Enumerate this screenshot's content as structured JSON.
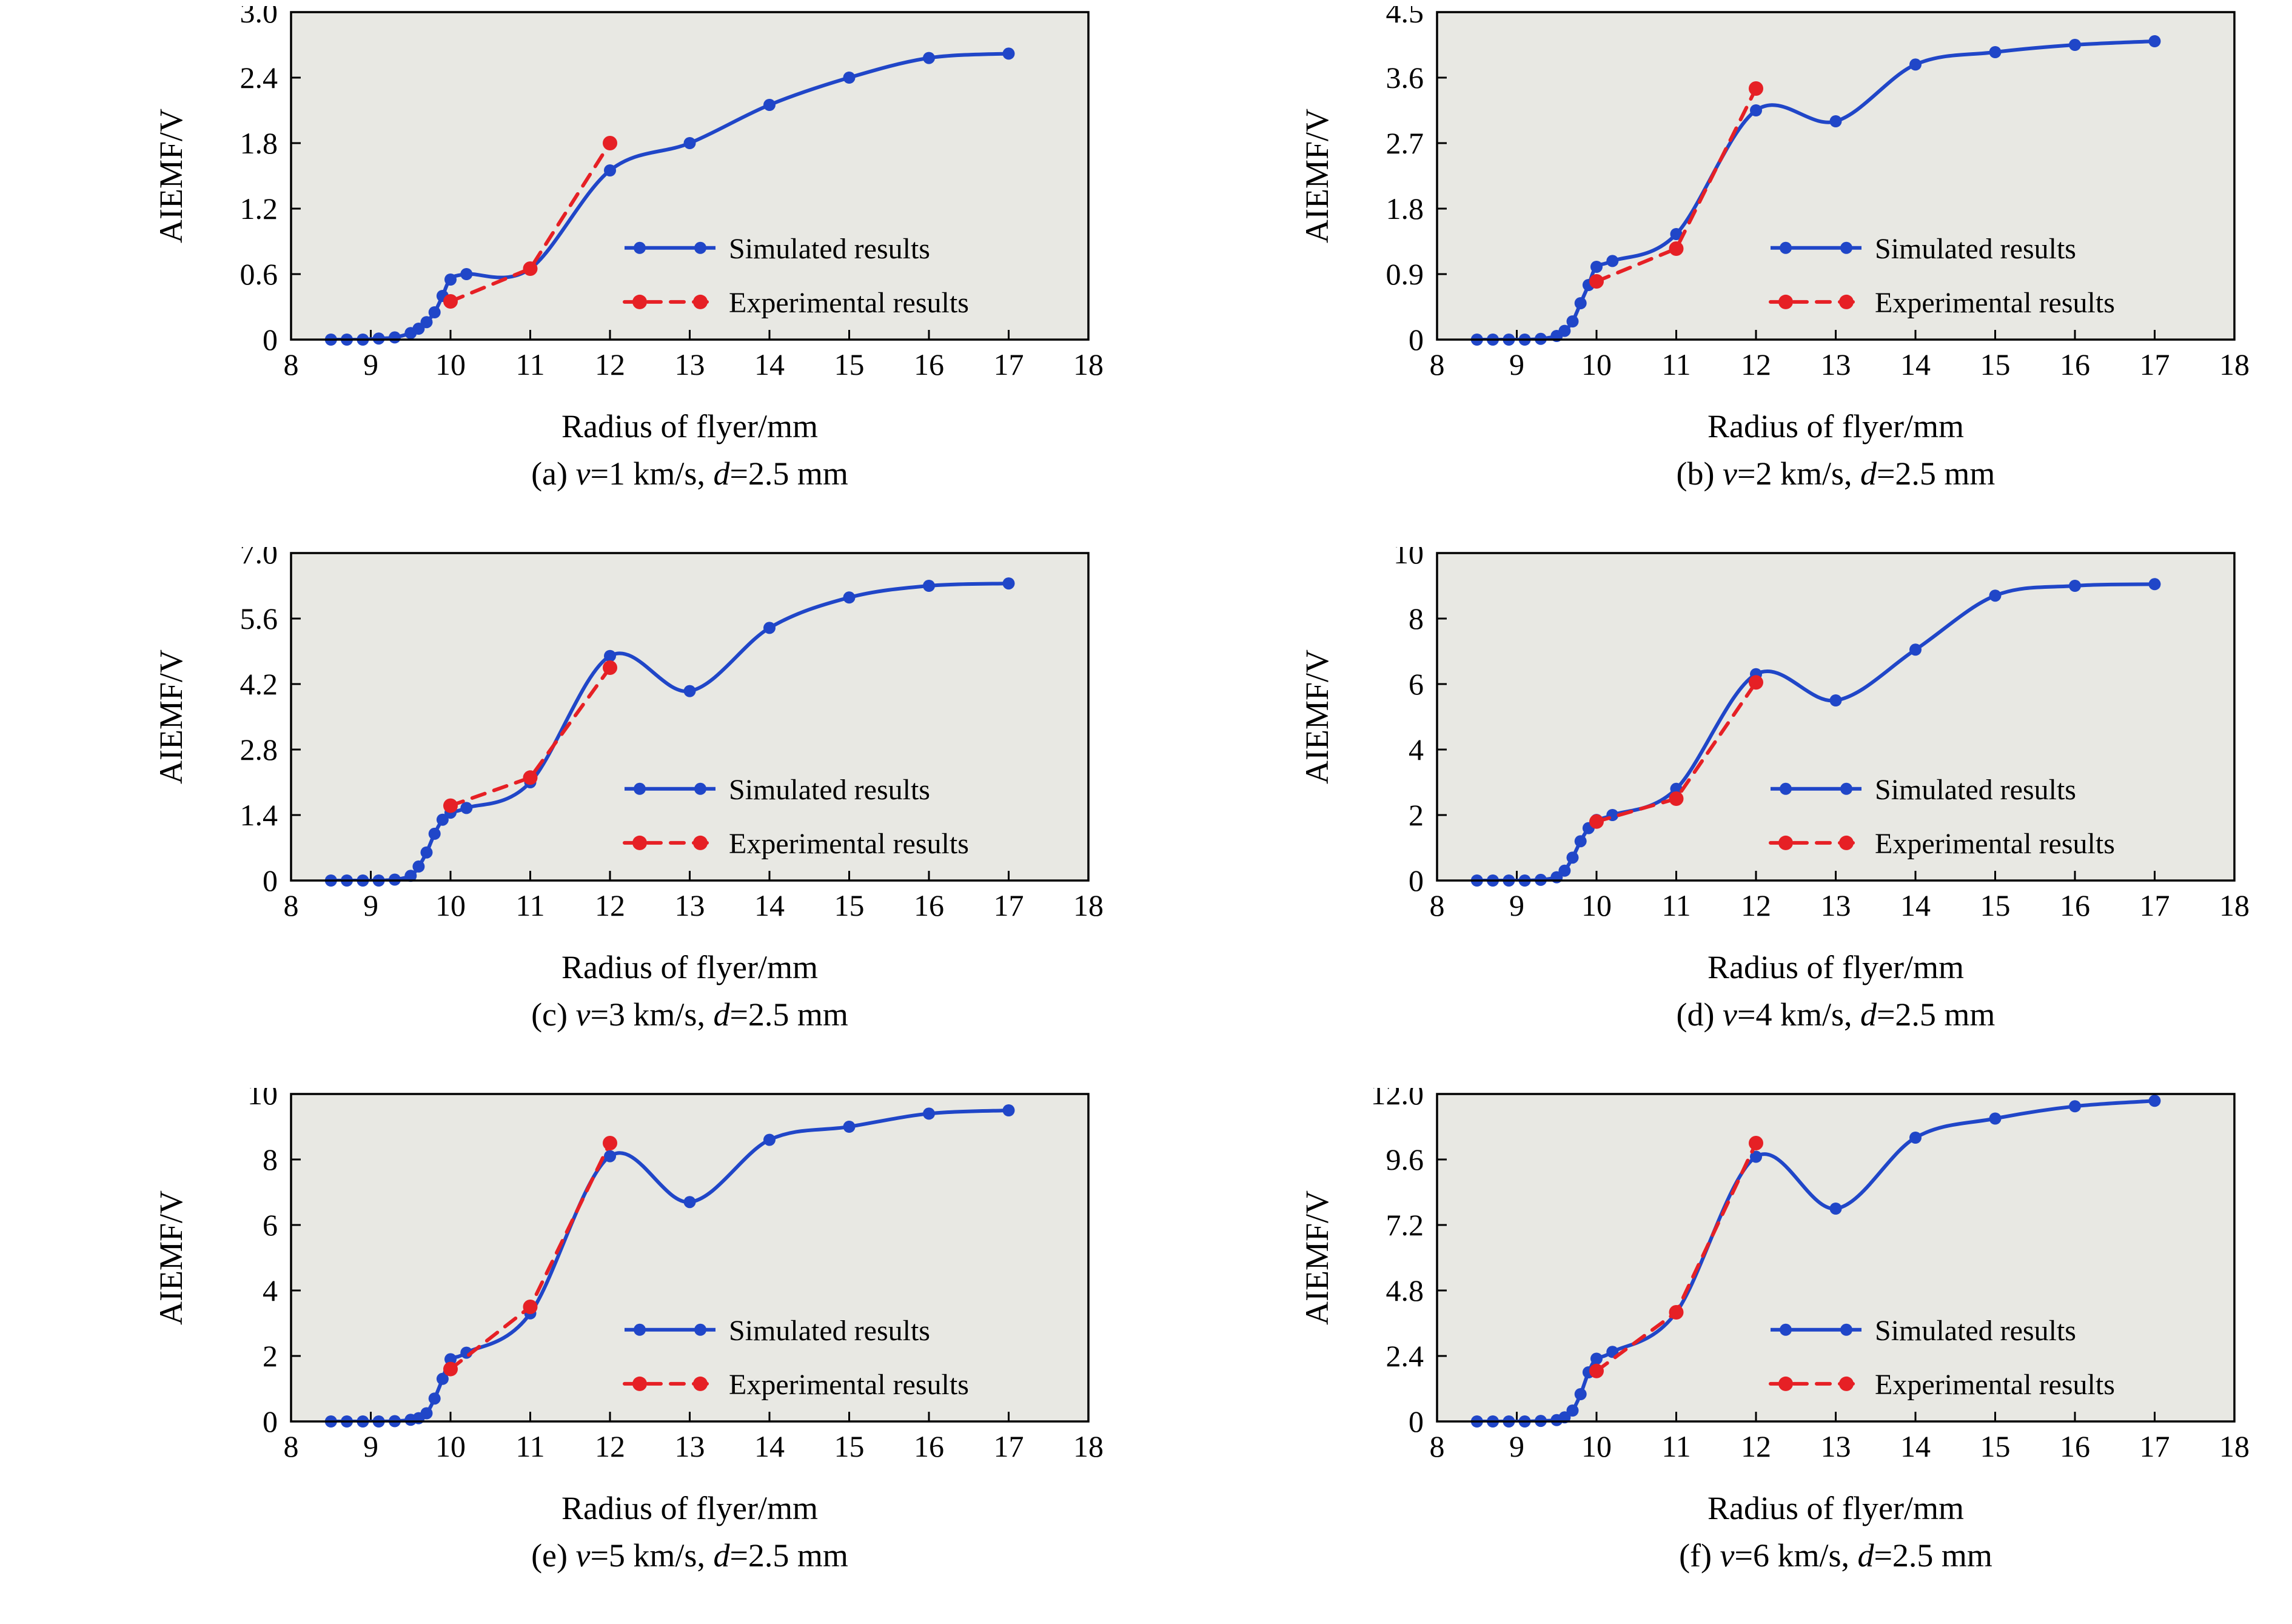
{
  "figure": {
    "background": "#ffffff",
    "plot_background": "#e8e8e3",
    "axis_color": "#000000",
    "text_color": "#000000"
  },
  "legend": {
    "items": [
      {
        "label": "Simulated results",
        "color": "#2046c8",
        "style": "solid"
      },
      {
        "label": "Experimental results",
        "color": "#e62025",
        "style": "dashed"
      }
    ]
  },
  "chart_data": [
    {
      "type": "line",
      "title": "(a) v=1 km/s, d=2.5 mm",
      "caption": {
        "idx": "(a) ",
        "v": "v",
        "vval": "=1 km/s, ",
        "d": "d",
        "dval": "=2.5 mm"
      },
      "xlabel": "Radius of flyer/mm",
      "ylabel": "AIEMF/V",
      "xlim": [
        8,
        18
      ],
      "xticks": [
        8,
        9,
        10,
        11,
        12,
        13,
        14,
        15,
        16,
        17,
        18
      ],
      "ylim": [
        0,
        3
      ],
      "yticks": [
        0,
        0.6,
        1.2,
        1.8,
        2.4,
        3.0
      ],
      "ytick_labels": [
        "0",
        "0.6",
        "1.2",
        "1.8",
        "2.4",
        "3.0"
      ],
      "series": [
        {
          "name": "Simulated results",
          "color": "#2046c8",
          "style": "solid",
          "x": [
            8.5,
            8.7,
            8.9,
            9.1,
            9.3,
            9.5,
            9.6,
            9.7,
            9.8,
            9.9,
            10,
            10.2,
            11,
            12,
            13,
            14,
            15,
            16,
            17
          ],
          "y": [
            0,
            0,
            0,
            0.01,
            0.02,
            0.06,
            0.1,
            0.16,
            0.25,
            0.4,
            0.55,
            0.6,
            0.65,
            1.55,
            1.8,
            2.15,
            2.4,
            2.58,
            2.62
          ]
        },
        {
          "name": "Experimental results",
          "color": "#e62025",
          "style": "dashed",
          "x": [
            10,
            11,
            12
          ],
          "y": [
            0.35,
            0.65,
            1.8
          ]
        }
      ]
    },
    {
      "type": "line",
      "title": "(b) v=2 km/s, d=2.5 mm",
      "caption": {
        "idx": "(b) ",
        "v": "v",
        "vval": "=2 km/s, ",
        "d": "d",
        "dval": "=2.5 mm"
      },
      "xlabel": "Radius of flyer/mm",
      "ylabel": "AIEMF/V",
      "xlim": [
        8,
        18
      ],
      "xticks": [
        8,
        9,
        10,
        11,
        12,
        13,
        14,
        15,
        16,
        17,
        18
      ],
      "ylim": [
        0,
        4.5
      ],
      "yticks": [
        0,
        0.9,
        1.8,
        2.7,
        3.6,
        4.5
      ],
      "ytick_labels": [
        "0",
        "0.9",
        "1.8",
        "2.7",
        "3.6",
        "4.5"
      ],
      "series": [
        {
          "name": "Simulated results",
          "color": "#2046c8",
          "style": "solid",
          "x": [
            8.5,
            8.7,
            8.9,
            9.1,
            9.3,
            9.5,
            9.6,
            9.7,
            9.8,
            9.9,
            10,
            10.2,
            11,
            12,
            13,
            14,
            15,
            16,
            17
          ],
          "y": [
            0,
            0,
            0,
            0,
            0.01,
            0.05,
            0.12,
            0.25,
            0.5,
            0.75,
            1.0,
            1.08,
            1.45,
            3.15,
            3.0,
            3.78,
            3.95,
            4.05,
            4.1
          ]
        },
        {
          "name": "Experimental results",
          "color": "#e62025",
          "style": "dashed",
          "x": [
            10,
            11,
            12
          ],
          "y": [
            0.8,
            1.25,
            3.45
          ]
        }
      ]
    },
    {
      "type": "line",
      "title": "(c) v=3 km/s, d=2.5 mm",
      "caption": {
        "idx": "(c) ",
        "v": "v",
        "vval": "=3 km/s, ",
        "d": "d",
        "dval": "=2.5 mm"
      },
      "xlabel": "Radius of flyer/mm",
      "ylabel": "AIEMF/V",
      "xlim": [
        8,
        18
      ],
      "xticks": [
        8,
        9,
        10,
        11,
        12,
        13,
        14,
        15,
        16,
        17,
        18
      ],
      "ylim": [
        0,
        7
      ],
      "yticks": [
        0,
        1.4,
        2.8,
        4.2,
        5.6,
        7.0
      ],
      "ytick_labels": [
        "0",
        "1.4",
        "2.8",
        "4.2",
        "5.6",
        "7.0"
      ],
      "series": [
        {
          "name": "Simulated results",
          "color": "#2046c8",
          "style": "solid",
          "x": [
            8.5,
            8.7,
            8.9,
            9.1,
            9.3,
            9.5,
            9.6,
            9.7,
            9.8,
            9.9,
            10,
            10.2,
            11,
            12,
            13,
            14,
            15,
            16,
            17
          ],
          "y": [
            0,
            0,
            0,
            0,
            0.02,
            0.1,
            0.3,
            0.6,
            1.0,
            1.3,
            1.45,
            1.55,
            2.1,
            4.8,
            4.05,
            5.4,
            6.05,
            6.3,
            6.35
          ]
        },
        {
          "name": "Experimental results",
          "color": "#e62025",
          "style": "dashed",
          "x": [
            10,
            11,
            12
          ],
          "y": [
            1.6,
            2.2,
            4.55
          ]
        }
      ]
    },
    {
      "type": "line",
      "title": "(d) v=4 km/s, d=2.5 mm",
      "caption": {
        "idx": "(d) ",
        "v": "v",
        "vval": "=4 km/s, ",
        "d": "d",
        "dval": "=2.5 mm"
      },
      "xlabel": "Radius of flyer/mm",
      "ylabel": "AIEMF/V",
      "xlim": [
        8,
        18
      ],
      "xticks": [
        8,
        9,
        10,
        11,
        12,
        13,
        14,
        15,
        16,
        17,
        18
      ],
      "ylim": [
        0,
        10
      ],
      "yticks": [
        0,
        2,
        4,
        6,
        8,
        10
      ],
      "ytick_labels": [
        "0",
        "2",
        "4",
        "6",
        "8",
        "10"
      ],
      "series": [
        {
          "name": "Simulated results",
          "color": "#2046c8",
          "style": "solid",
          "x": [
            8.5,
            8.7,
            8.9,
            9.1,
            9.3,
            9.5,
            9.6,
            9.7,
            9.8,
            9.9,
            10,
            10.2,
            11,
            12,
            13,
            14,
            15,
            16,
            17
          ],
          "y": [
            0,
            0,
            0,
            0,
            0.02,
            0.1,
            0.3,
            0.7,
            1.2,
            1.6,
            1.85,
            2.0,
            2.8,
            6.3,
            5.5,
            7.05,
            8.7,
            9.0,
            9.05
          ]
        },
        {
          "name": "Experimental results",
          "color": "#e62025",
          "style": "dashed",
          "x": [
            10,
            11,
            12
          ],
          "y": [
            1.8,
            2.5,
            6.05
          ]
        }
      ]
    },
    {
      "type": "line",
      "title": "(e) v=5 km/s, d=2.5 mm",
      "caption": {
        "idx": "(e) ",
        "v": "v",
        "vval": "=5 km/s, ",
        "d": "d",
        "dval": "=2.5 mm"
      },
      "xlabel": "Radius of flyer/mm",
      "ylabel": "AIEMF/V",
      "xlim": [
        8,
        18
      ],
      "xticks": [
        8,
        9,
        10,
        11,
        12,
        13,
        14,
        15,
        16,
        17,
        18
      ],
      "ylim": [
        0,
        10
      ],
      "yticks": [
        0,
        2,
        4,
        6,
        8,
        10
      ],
      "ytick_labels": [
        "0",
        "2",
        "4",
        "6",
        "8",
        "10"
      ],
      "series": [
        {
          "name": "Simulated results",
          "color": "#2046c8",
          "style": "solid",
          "x": [
            8.5,
            8.7,
            8.9,
            9.1,
            9.3,
            9.5,
            9.6,
            9.7,
            9.8,
            9.9,
            10,
            10.2,
            11,
            12,
            13,
            14,
            15,
            16,
            17
          ],
          "y": [
            0,
            0,
            0,
            0,
            0.01,
            0.05,
            0.1,
            0.25,
            0.7,
            1.3,
            1.9,
            2.1,
            3.3,
            8.1,
            6.7,
            8.6,
            9.0,
            9.4,
            9.5
          ]
        },
        {
          "name": "Experimental results",
          "color": "#e62025",
          "style": "dashed",
          "x": [
            10,
            11,
            12
          ],
          "y": [
            1.6,
            3.5,
            8.5
          ]
        }
      ]
    },
    {
      "type": "line",
      "title": "(f) v=6 km/s, d=2.5 mm",
      "caption": {
        "idx": "(f) ",
        "v": "v",
        "vval": "=6 km/s, ",
        "d": "d",
        "dval": "=2.5 mm"
      },
      "xlabel": "Radius of flyer/mm",
      "ylabel": "AIEMF/V",
      "xlim": [
        8,
        18
      ],
      "xticks": [
        8,
        9,
        10,
        11,
        12,
        13,
        14,
        15,
        16,
        17,
        18
      ],
      "ylim": [
        0,
        12
      ],
      "yticks": [
        0,
        2.4,
        4.8,
        7.2,
        9.6,
        12.0
      ],
      "ytick_labels": [
        "0",
        "2.4",
        "4.8",
        "7.2",
        "9.6",
        "12.0"
      ],
      "series": [
        {
          "name": "Simulated results",
          "color": "#2046c8",
          "style": "solid",
          "x": [
            8.5,
            8.7,
            8.9,
            9.1,
            9.3,
            9.5,
            9.6,
            9.7,
            9.8,
            9.9,
            10,
            10.2,
            11,
            12,
            13,
            14,
            15,
            16,
            17
          ],
          "y": [
            0,
            0,
            0,
            0,
            0.02,
            0.05,
            0.15,
            0.4,
            1.0,
            1.8,
            2.3,
            2.55,
            4.0,
            9.7,
            7.8,
            10.4,
            11.1,
            11.55,
            11.75
          ]
        },
        {
          "name": "Experimental results",
          "color": "#e62025",
          "style": "dashed",
          "x": [
            10,
            11,
            12
          ],
          "y": [
            1.85,
            4.0,
            10.2
          ]
        }
      ]
    }
  ]
}
